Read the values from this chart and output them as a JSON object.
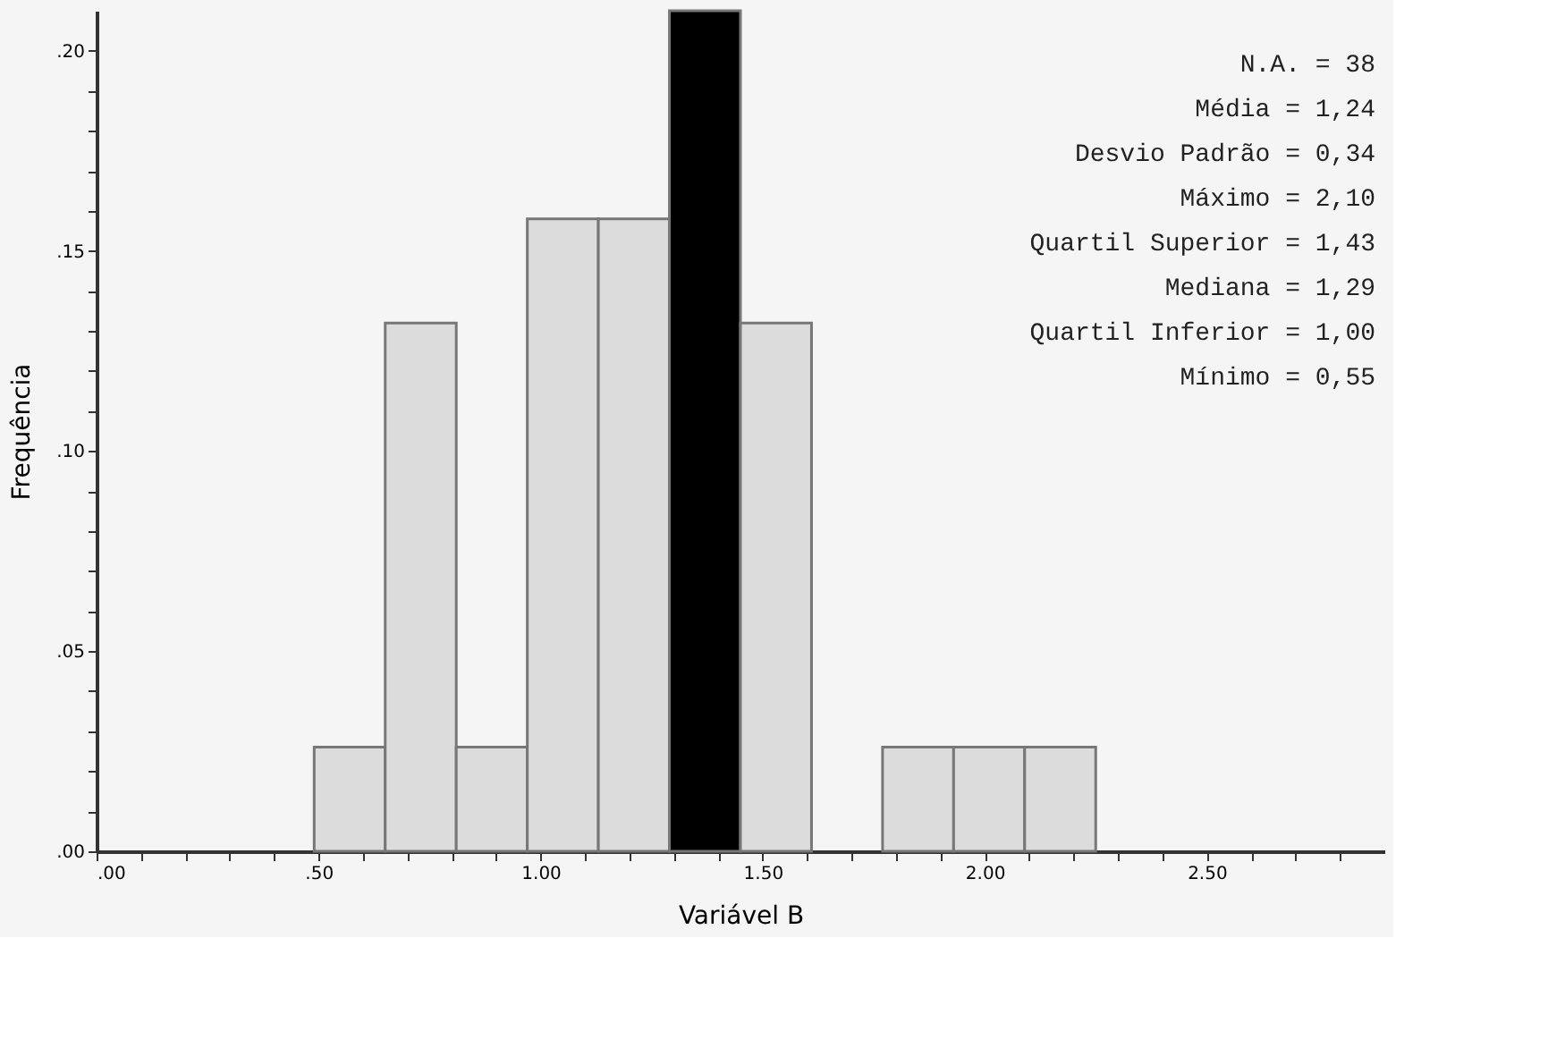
{
  "chart_data": {
    "type": "histogram",
    "xlabel": "Variável B",
    "ylabel": "Frequência",
    "bins": [
      0.49,
      0.65,
      0.81,
      0.97,
      1.13,
      1.29,
      1.45,
      1.61,
      1.77,
      1.93,
      2.09,
      2.25
    ],
    "values": [
      0.026,
      0.132,
      0.026,
      0.158,
      0.158,
      0.21,
      0.132,
      0,
      0.026,
      0.026,
      0.026
    ],
    "colors": [
      "#dcdcdc",
      "#dcdcdc",
      "#dcdcdc",
      "#dcdcdc",
      "#dcdcdc",
      "#000000",
      "#dcdcdc",
      "#dcdcdc",
      "#dcdcdc",
      "#dcdcdc",
      "#dcdcdc"
    ],
    "xlim": [
      0,
      2.9
    ],
    "ylim": [
      0,
      0.21
    ],
    "xticks": [
      {
        "value": 0,
        "label": ".00"
      },
      {
        "value": 0.1,
        "label": null
      },
      {
        "value": 0.2,
        "label": null
      },
      {
        "value": 0.3,
        "label": null
      },
      {
        "value": 0.4,
        "label": null
      },
      {
        "value": 0.5,
        "label": ".50"
      },
      {
        "value": 0.6,
        "label": null
      },
      {
        "value": 0.7,
        "label": null
      },
      {
        "value": 0.8,
        "label": null
      },
      {
        "value": 0.9,
        "label": null
      },
      {
        "value": 1.0,
        "label": "1.00"
      },
      {
        "value": 1.1,
        "label": null
      },
      {
        "value": 1.2,
        "label": null
      },
      {
        "value": 1.3,
        "label": null
      },
      {
        "value": 1.4,
        "label": null
      },
      {
        "value": 1.5,
        "label": "1.50"
      },
      {
        "value": 1.6,
        "label": null
      },
      {
        "value": 1.7,
        "label": null
      },
      {
        "value": 1.8,
        "label": null
      },
      {
        "value": 1.9,
        "label": null
      },
      {
        "value": 2.0,
        "label": "2.00"
      },
      {
        "value": 2.1,
        "label": null
      },
      {
        "value": 2.2,
        "label": null
      },
      {
        "value": 2.3,
        "label": null
      },
      {
        "value": 2.4,
        "label": null
      },
      {
        "value": 2.5,
        "label": "2.50"
      },
      {
        "value": 2.6,
        "label": null
      },
      {
        "value": 2.7,
        "label": null
      },
      {
        "value": 2.8,
        "label": null
      }
    ],
    "yticks": [
      {
        "value": 0,
        "label": ".00"
      },
      {
        "value": 0.01,
        "label": null
      },
      {
        "value": 0.02,
        "label": null
      },
      {
        "value": 0.03,
        "label": null
      },
      {
        "value": 0.04,
        "label": null
      },
      {
        "value": 0.05,
        "label": ".05"
      },
      {
        "value": 0.06,
        "label": null
      },
      {
        "value": 0.07,
        "label": null
      },
      {
        "value": 0.08,
        "label": null
      },
      {
        "value": 0.09,
        "label": null
      },
      {
        "value": 0.1,
        "label": ".10"
      },
      {
        "value": 0.11,
        "label": null
      },
      {
        "value": 0.12,
        "label": null
      },
      {
        "value": 0.13,
        "label": null
      },
      {
        "value": 0.14,
        "label": null
      },
      {
        "value": 0.15,
        "label": ".15"
      },
      {
        "value": 0.16,
        "label": null
      },
      {
        "value": 0.17,
        "label": null
      },
      {
        "value": 0.18,
        "label": null
      },
      {
        "value": 0.19,
        "label": null
      },
      {
        "value": 0.2,
        "label": ".20"
      }
    ],
    "grid": false,
    "annotations": [
      "N.A. = 38",
      "Média = 1,24",
      "Desvio Padrão = 0,34",
      "Máximo = 2,10",
      "Quartil Superior = 1,43",
      "Mediana = 1,29",
      "Quartil Inferior = 1,00",
      "Mínimo = 0,55"
    ]
  }
}
